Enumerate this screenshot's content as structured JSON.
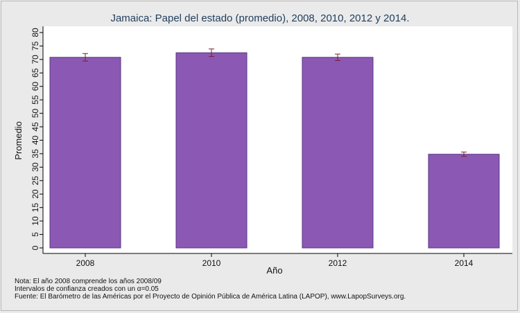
{
  "chart_data": {
    "type": "bar",
    "title": "Jamaica: Papel del estado (promedio), 2008, 2010, 2012 y 2014.",
    "xlabel": "Año",
    "ylabel": "Promedio",
    "categories": [
      "2008",
      "2010",
      "2012",
      "2014"
    ],
    "values": [
      70.8,
      72.5,
      70.8,
      34.8
    ],
    "ci_low": [
      69.4,
      71.1,
      69.6,
      34.0
    ],
    "ci_high": [
      72.2,
      73.9,
      72.0,
      35.6
    ],
    "ylim": [
      0,
      80
    ],
    "yticks": [
      "0",
      "5",
      "10",
      "15",
      "20",
      "25",
      "30",
      "35",
      "40",
      "45",
      "50",
      "55",
      "60",
      "65",
      "70",
      "75",
      "80"
    ],
    "grid": false,
    "bar_color": "#8b59b4",
    "errorbar_color": "#7a1f2e"
  },
  "notes": [
    "Nota: El año 2008 comprende los años 2008/09",
    "Intervalos de confianza creados con un ",
    "Fuente: El Barómetro de las Américas por el Proyecto de Opinión Pública de América Latina (LAPOP), www.LapopSurveys.org."
  ],
  "alpha_symbol": "α",
  "alpha_value": "=0.05"
}
